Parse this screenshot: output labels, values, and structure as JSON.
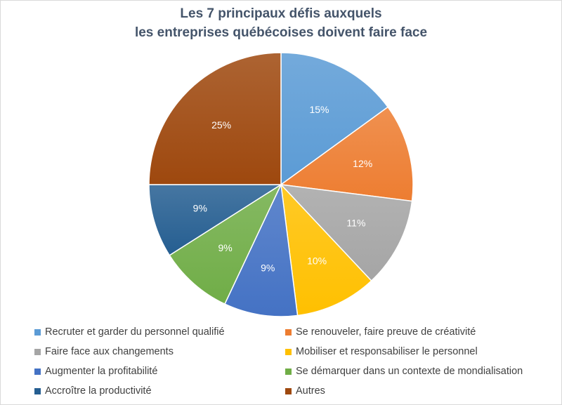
{
  "chart_data": {
    "type": "pie",
    "title": "Les 7 principaux défis auxquels les entreprises québécoises doivent faire face",
    "title_lines": [
      "Les 7 principaux défis auxquels",
      "les entreprises québécoises doivent faire face"
    ],
    "categories": [
      "Recruter et garder du personnel qualifié",
      "Se renouveler, faire preuve de créativité",
      "Faire face aux changements",
      "Mobiliser et responsabiliser le personnel",
      "Augmenter la profitabilité",
      "Se démarquer dans un contexte de mondialisation",
      "Accroître la productivité",
      "Autres"
    ],
    "values": [
      15,
      12,
      11,
      10,
      9,
      9,
      9,
      25
    ],
    "labels": [
      "15%",
      "12%",
      "11%",
      "10%",
      "9%",
      "9%",
      "9%",
      "25%"
    ],
    "colors": [
      "#5b9bd5",
      "#ed7d31",
      "#a5a5a5",
      "#ffc000",
      "#4472c4",
      "#70ad47",
      "#255e91",
      "#9e480e"
    ],
    "legend_position": "bottom"
  }
}
